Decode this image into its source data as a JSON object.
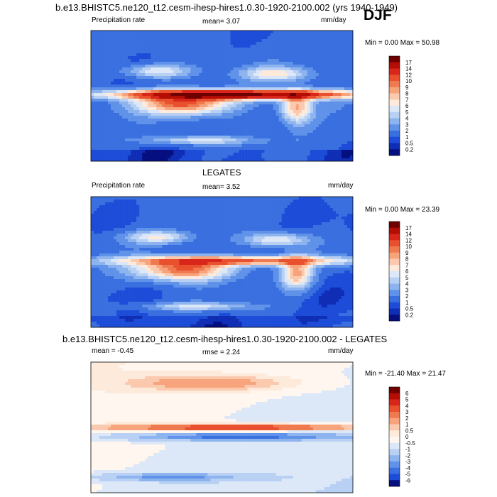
{
  "figure": {
    "main_title": "b.e13.BHISTC5.ne120_t12.cesm-ihesp-hires1.0.30-1920-2100.002 (yrs 1940-1949)",
    "season": "DJF"
  },
  "chart_data": [
    {
      "type": "heatmap",
      "title": "",
      "left_label": "Precipitation rate",
      "stat_text": "mean=  3.07",
      "units": "mm/day",
      "minmax_text": "Min =   0.00 Max =  50.98",
      "min": 0.0,
      "max": 50.98,
      "colorbar_labels": [
        "17",
        "14",
        "12",
        "10",
        "9",
        "8",
        "7",
        "6",
        "5",
        "4",
        "3",
        "2",
        "1",
        "0.5",
        "0.2"
      ],
      "colorbar_colors": [
        "#6e0000",
        "#b30d05",
        "#d8271a",
        "#e8502e",
        "#f07a50",
        "#f7a47c",
        "#fbc9ad",
        "#fdeadb",
        "#dce8f7",
        "#b8d0f3",
        "#8db4ee",
        "#5f92e8",
        "#3a6fe0",
        "#1d4dd8",
        "#0f2eb5",
        "#050f80"
      ],
      "field_style": "precip"
    },
    {
      "type": "heatmap",
      "title": "LEGATES",
      "left_label": "Precipitation rate",
      "stat_text": "mean=   3.52",
      "units": "mm/day",
      "minmax_text": "Min =   0.00 Max =  23.39",
      "min": 0.0,
      "max": 23.39,
      "colorbar_labels": [
        "17",
        "14",
        "12",
        "10",
        "9",
        "8",
        "7",
        "6",
        "5",
        "4",
        "3",
        "2",
        "1",
        "0.5",
        "0.2"
      ],
      "colorbar_colors": [
        "#6e0000",
        "#b30d05",
        "#d8271a",
        "#e8502e",
        "#f07a50",
        "#f7a47c",
        "#fbc9ad",
        "#fdeadb",
        "#dce8f7",
        "#b8d0f3",
        "#8db4ee",
        "#5f92e8",
        "#3a6fe0",
        "#1d4dd8",
        "#0f2eb5",
        "#050f80"
      ],
      "field_style": "precip"
    },
    {
      "type": "heatmap",
      "title": "b.e13.BHISTC5.ne120_t12.cesm-ihesp-hires1.0.30-1920-2100.002 - LEGATES",
      "left_label": "mean = -0.45",
      "stat_text": "rmse =   2.24",
      "units": "mm/day",
      "minmax_text": "Min = -21.40 Max =  21.47",
      "min": -21.4,
      "max": 21.47,
      "colorbar_labels": [
        "6",
        "5",
        "4",
        "3",
        "2",
        "1",
        "0.5",
        "0",
        "-0.5",
        "-1",
        "-2",
        "-3",
        "-4",
        "-5",
        "-6"
      ],
      "colorbar_colors": [
        "#6e0000",
        "#b30d05",
        "#d8271a",
        "#e8502e",
        "#f07a50",
        "#f7a47c",
        "#fbc9ad",
        "#fdeadb",
        "#fff6ef",
        "#dce8f7",
        "#b8d0f3",
        "#8db4ee",
        "#5f92e8",
        "#3a6fe0",
        "#1d4dd8",
        "#050f80"
      ],
      "field_style": "diff"
    }
  ]
}
